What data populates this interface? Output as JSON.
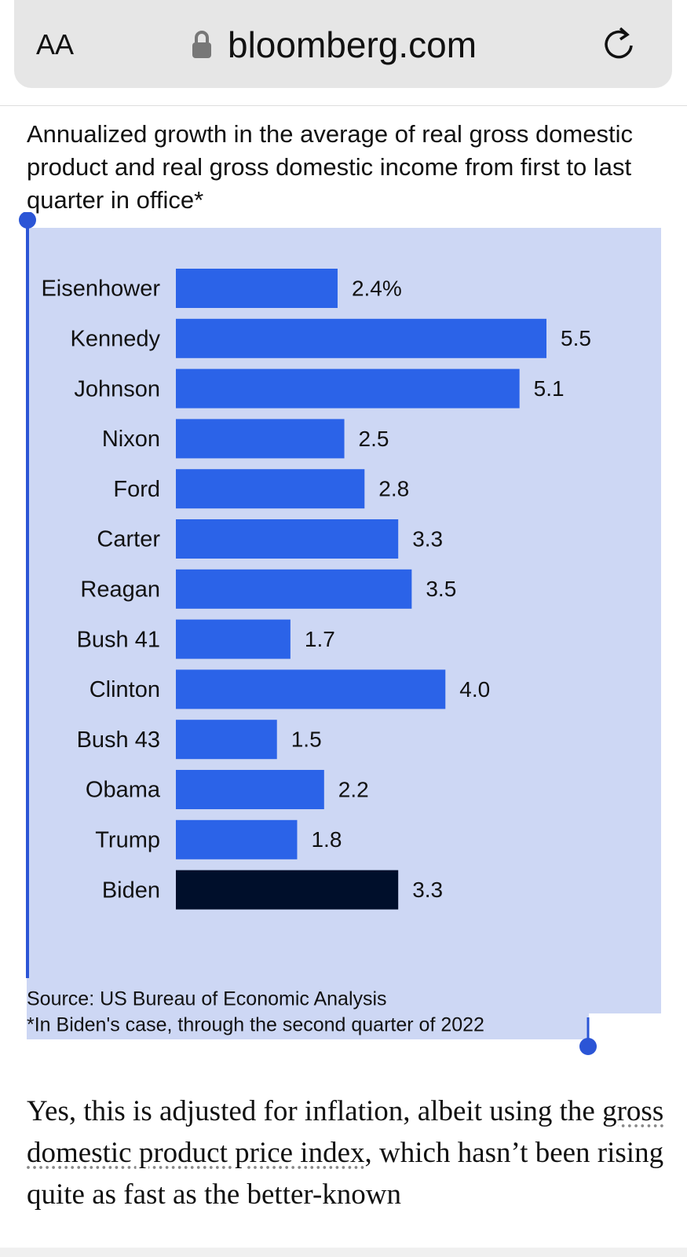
{
  "browser": {
    "text_size_button": "AA",
    "url": "bloomberg.com"
  },
  "chart_data": {
    "type": "bar",
    "orientation": "horizontal",
    "title": "Annualized growth in the average of real gross domestic product and real gross domestic income from first to last quarter in office*",
    "categories": [
      "Eisenhower",
      "Kennedy",
      "Johnson",
      "Nixon",
      "Ford",
      "Carter",
      "Reagan",
      "Bush 41",
      "Clinton",
      "Bush 43",
      "Obama",
      "Trump",
      "Biden"
    ],
    "values": [
      2.4,
      5.5,
      5.1,
      2.5,
      2.8,
      3.3,
      3.5,
      1.7,
      4.0,
      1.5,
      2.2,
      1.8,
      3.3
    ],
    "value_labels": [
      "2.4%",
      "5.5",
      "5.1",
      "2.5",
      "2.8",
      "3.3",
      "3.5",
      "1.7",
      "4.0",
      "1.5",
      "2.2",
      "1.8",
      "3.3"
    ],
    "colors": [
      "#2b63e8",
      "#2b63e8",
      "#2b63e8",
      "#2b63e8",
      "#2b63e8",
      "#2b63e8",
      "#2b63e8",
      "#2b63e8",
      "#2b63e8",
      "#2b63e8",
      "#2b63e8",
      "#2b63e8",
      "#000f2b"
    ],
    "source": "Source: US Bureau of Economic Analysis",
    "footnote": "*In Biden's case, through the second quarter of 2022"
  },
  "article": {
    "paragraph": [
      "Yes, this is adjusted for inflation, albeit using the ",
      "gross domestic product price index",
      ", which hasn’t been rising quite as fast as the better-known"
    ]
  }
}
